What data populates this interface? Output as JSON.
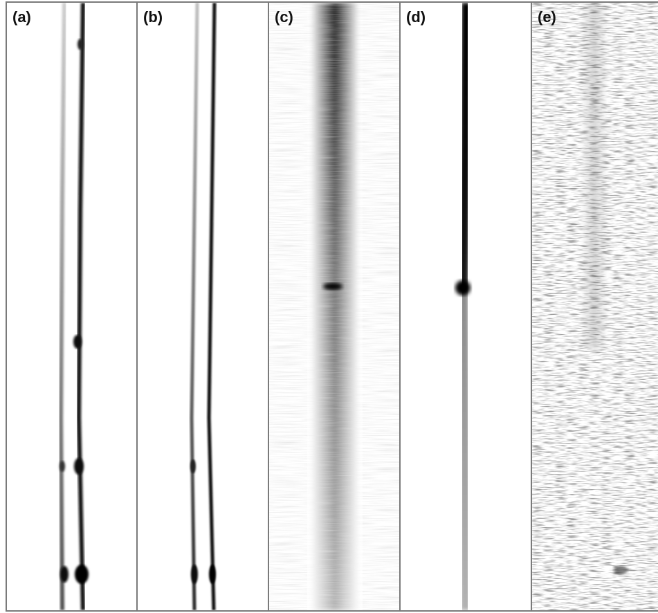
{
  "panels": [
    {
      "id": "a",
      "label": "(a)"
    },
    {
      "id": "b",
      "label": "(b)"
    },
    {
      "id": "c",
      "label": "(c)"
    },
    {
      "id": "d",
      "label": "(d)"
    },
    {
      "id": "e",
      "label": "(e)"
    }
  ]
}
